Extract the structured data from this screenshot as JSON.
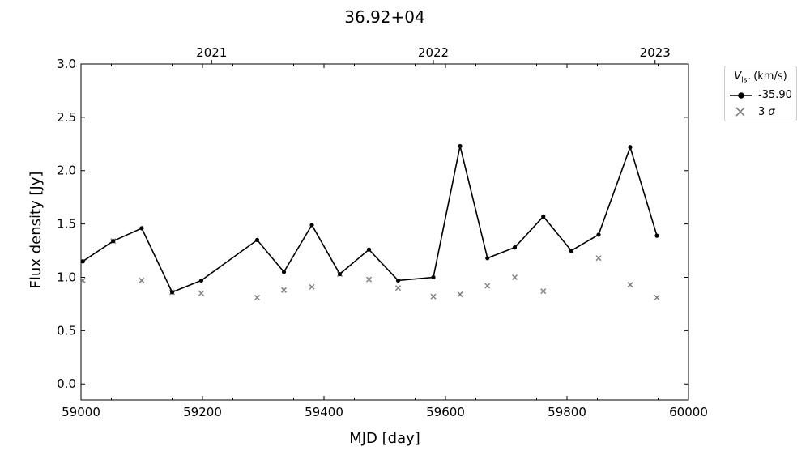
{
  "chart_data": {
    "type": "scatter",
    "title": "36.92+04",
    "xlabel": "MJD [day]",
    "ylabel": "Flux density [Jy]",
    "xlim": [
      59000,
      60000
    ],
    "ylim": [
      -0.15,
      3.0
    ],
    "x_ticks": [
      59000,
      59200,
      59400,
      59600,
      59800,
      60000
    ],
    "x_tick_labels": [
      "59000",
      "59200",
      "59400",
      "59600",
      "59800",
      "60000"
    ],
    "y_ticks": [
      0.0,
      0.5,
      1.0,
      1.5,
      2.0,
      2.5,
      3.0
    ],
    "y_tick_labels": [
      "0.0",
      "0.5",
      "1.0",
      "1.5",
      "2.0",
      "2.5",
      "3.0"
    ],
    "top_axis": {
      "ticks": [
        59215,
        59580,
        59945
      ],
      "labels": [
        "2021",
        "2022",
        "2023"
      ]
    },
    "legend": {
      "title": "V_lsr (km/s)",
      "title_main": "V",
      "title_sub": "lsr",
      "title_rest": " (km/s)",
      "placement": "outside-top-right"
    },
    "series": [
      {
        "name": "-35.90",
        "style": "line-marker",
        "color": "#000000",
        "x": [
          59003,
          59053,
          59100,
          59150,
          59198,
          59290,
          59334,
          59380,
          59426,
          59474,
          59522,
          59580,
          59624,
          59669,
          59714,
          59761,
          59807,
          59852,
          59904,
          59948
        ],
        "y": [
          1.15,
          1.34,
          1.46,
          0.86,
          0.97,
          1.35,
          1.05,
          1.49,
          1.03,
          1.26,
          0.97,
          1.0,
          2.23,
          1.18,
          1.28,
          1.57,
          1.25,
          1.4,
          2.22,
          1.39
        ]
      },
      {
        "name": "3 σ",
        "name_main": "3 ",
        "name_sigma": "σ",
        "style": "x-marker",
        "color": "#808080",
        "x": [
          59003,
          59053,
          59100,
          59150,
          59198,
          59290,
          59334,
          59380,
          59426,
          59474,
          59522,
          59580,
          59624,
          59669,
          59714,
          59761,
          59807,
          59852,
          59904,
          59948
        ],
        "y": [
          0.97,
          1.34,
          0.97,
          0.86,
          0.85,
          0.81,
          0.88,
          0.91,
          1.03,
          0.98,
          0.9,
          0.82,
          0.84,
          0.92,
          1.0,
          0.87,
          1.25,
          1.18,
          0.93,
          0.81
        ]
      }
    ]
  }
}
